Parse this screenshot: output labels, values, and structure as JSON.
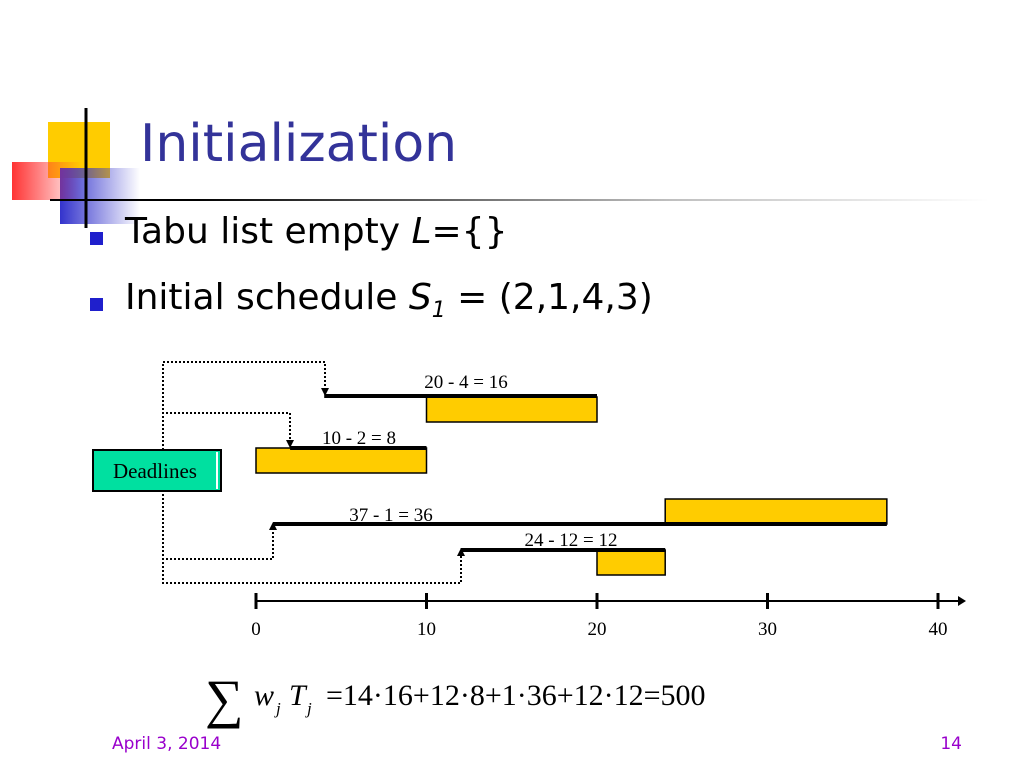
{
  "slide": {
    "title": "Initialization",
    "bullets": [
      {
        "text": "Tabu list empty ",
        "italic": "L",
        "rest": "={}"
      },
      {
        "text": "Initial schedule ",
        "italic": "S",
        "sub": "1",
        "rest": " = (2,1,4,3)"
      }
    ],
    "footer_date": "April 3, 2014",
    "footer_page": "14"
  },
  "diagram": {
    "deadlines_label": "Deadlines",
    "tardiness_labels": [
      "20 - 4 = 16",
      "10 - 2 = 8",
      "37 - 1 = 36",
      "24 - 12 = 12"
    ],
    "formula": "=14·16+12·8+1·36+12·12=500",
    "colors": {
      "job_fill": "#ffcc00",
      "deadline_box": "#00e0a0",
      "title": "#333399",
      "footer": "#9900cc"
    }
  },
  "chart_data": {
    "type": "gantt",
    "axis": {
      "ticks": [
        0,
        10,
        20,
        30,
        40
      ],
      "range": [
        0,
        40
      ]
    },
    "jobs": [
      {
        "start": 10,
        "end": 20,
        "deadline": 4,
        "label": "20 - 4 = 16"
      },
      {
        "start": 0,
        "end": 10,
        "deadline": 2,
        "label": "10 - 2 = 8"
      },
      {
        "start": 24,
        "end": 37,
        "deadline": 1,
        "label": "37 - 1 = 36"
      },
      {
        "start": 20,
        "end": 24,
        "deadline": 12,
        "label": "24 - 12 = 12"
      }
    ]
  }
}
